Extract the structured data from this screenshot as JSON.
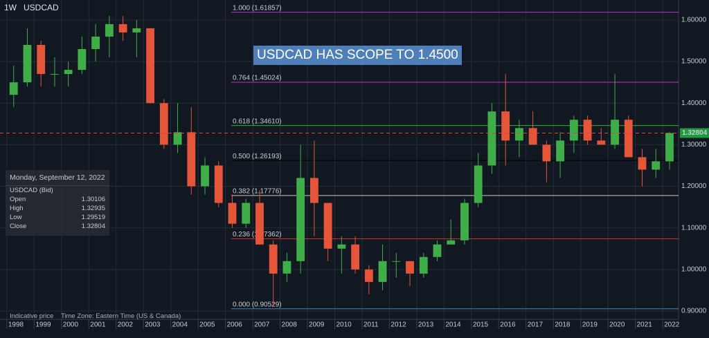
{
  "chart_data": {
    "type": "candlestick",
    "interval": "1W",
    "symbol": "USDCAD",
    "title": "USDCAD HAS SCOPE TO 1.4500",
    "panel": {
      "date": "Monday, September 12, 2022",
      "instrument": "USDCAD (Bid)",
      "rows": [
        {
          "label": "Open",
          "value": "1.30106"
        },
        {
          "label": "High",
          "value": "1.32935"
        },
        {
          "label": "Low",
          "value": "1.29519"
        },
        {
          "label": "Close",
          "value": "1.32804"
        }
      ]
    },
    "footer": {
      "note": "Indicative price",
      "timezone": "Time Zone: Eastern Time (US & Canada)"
    },
    "xlim": [
      1997.75,
      2022.58
    ],
    "xticks": [
      1998,
      1999,
      2000,
      2001,
      2002,
      2003,
      2004,
      2005,
      2006,
      2007,
      2008,
      2009,
      2010,
      2011,
      2012,
      2013,
      2014,
      2015,
      2016,
      2017,
      2018,
      2019,
      2020,
      2021,
      2022
    ],
    "ylim": [
      0.88,
      1.648
    ],
    "yticks": [
      {
        "value": 0.9,
        "label": "0.90000"
      },
      {
        "value": 1.0,
        "label": "1.00000"
      },
      {
        "value": 1.1,
        "label": "1.10000"
      },
      {
        "value": 1.2,
        "label": "1.20000"
      },
      {
        "value": 1.3,
        "label": "1.30000"
      },
      {
        "value": 1.4,
        "label": "1.40000"
      },
      {
        "value": 1.5,
        "label": "1.50000"
      },
      {
        "value": 1.6,
        "label": "1.60000"
      }
    ],
    "grid": true,
    "up_color": "#3fae49",
    "down_color": "#e4553a",
    "current_price": 1.32804,
    "current_color": "#e0433b",
    "levels": [
      {
        "label": "1.000 (1.61857)",
        "value": 1.61857,
        "color": "#c62bd0"
      },
      {
        "label": "0.764 (1.45024)",
        "value": 1.45024,
        "color": "#c62bd0"
      },
      {
        "label": "0.618 (1.34610)",
        "value": 1.3461,
        "color": "#2fb52f"
      },
      {
        "label": "0.500 (1.26193)",
        "value": 1.26193,
        "color": "#000000"
      },
      {
        "label": "0.382 (1.17776)",
        "value": 1.17776,
        "color": "#d9c3b0"
      },
      {
        "label": "0.236 (1.07362)",
        "value": 1.07362,
        "color": "#c0392b"
      },
      {
        "label": "0.000 (0.90529)",
        "value": 0.90529,
        "color": "#4a7fc1"
      }
    ],
    "x": [
      1998.25,
      1998.75,
      1999.25,
      1999.75,
      2000.25,
      2000.75,
      2001.25,
      2001.75,
      2002.25,
      2002.75,
      2003.25,
      2003.75,
      2004.25,
      2004.75,
      2005.25,
      2005.75,
      2006.25,
      2006.75,
      2007.25,
      2007.75,
      2008.25,
      2008.75,
      2009.25,
      2009.75,
      2010.25,
      2010.75,
      2011.25,
      2011.75,
      2012.25,
      2012.75,
      2013.25,
      2013.75,
      2014.25,
      2014.75,
      2015.25,
      2015.75,
      2016.25,
      2016.75,
      2017.25,
      2017.75,
      2018.25,
      2018.75,
      2019.25,
      2019.75,
      2020.25,
      2020.75,
      2021.25,
      2021.75,
      2022.25
    ],
    "open": [
      1.42,
      1.45,
      1.54,
      1.47,
      1.47,
      1.48,
      1.53,
      1.56,
      1.59,
      1.57,
      1.58,
      1.4,
      1.3,
      1.33,
      1.2,
      1.25,
      1.16,
      1.11,
      1.16,
      1.06,
      0.99,
      1.02,
      1.22,
      1.16,
      1.05,
      1.06,
      1.0,
      0.97,
      1.02,
      1.02,
      0.99,
      1.03,
      1.06,
      1.07,
      1.16,
      1.25,
      1.38,
      1.31,
      1.34,
      1.3,
      1.26,
      1.31,
      1.36,
      1.31,
      1.3,
      1.36,
      1.27,
      1.24,
      1.26
    ],
    "high": [
      1.49,
      1.58,
      1.55,
      1.51,
      1.5,
      1.56,
      1.59,
      1.61,
      1.61,
      1.6,
      1.58,
      1.41,
      1.4,
      1.39,
      1.27,
      1.26,
      1.18,
      1.17,
      1.19,
      1.07,
      1.04,
      1.3,
      1.31,
      1.16,
      1.08,
      1.08,
      1.01,
      1.06,
      1.04,
      1.02,
      1.04,
      1.07,
      1.12,
      1.17,
      1.28,
      1.4,
      1.47,
      1.36,
      1.38,
      1.31,
      1.33,
      1.37,
      1.37,
      1.34,
      1.47,
      1.37,
      1.29,
      1.29,
      1.33
    ],
    "low": [
      1.39,
      1.44,
      1.44,
      1.44,
      1.44,
      1.47,
      1.5,
      1.51,
      1.55,
      1.51,
      1.4,
      1.29,
      1.28,
      1.18,
      1.18,
      1.15,
      1.1,
      1.1,
      1.06,
      0.91,
      0.97,
      0.99,
      1.08,
      1.02,
      0.99,
      0.99,
      0.94,
      0.95,
      0.98,
      0.96,
      0.98,
      1.02,
      1.06,
      1.06,
      1.15,
      1.23,
      1.25,
      1.27,
      1.3,
      1.21,
      1.22,
      1.28,
      1.3,
      1.3,
      1.29,
      1.27,
      1.2,
      1.22,
      1.24
    ],
    "close": [
      1.45,
      1.54,
      1.47,
      1.47,
      1.48,
      1.53,
      1.56,
      1.59,
      1.57,
      1.58,
      1.4,
      1.3,
      1.33,
      1.2,
      1.25,
      1.16,
      1.11,
      1.16,
      1.06,
      0.99,
      1.02,
      1.22,
      1.16,
      1.05,
      1.06,
      1.0,
      0.97,
      1.02,
      1.02,
      0.99,
      1.03,
      1.06,
      1.07,
      1.16,
      1.25,
      1.38,
      1.31,
      1.34,
      1.3,
      1.26,
      1.31,
      1.36,
      1.31,
      1.3,
      1.36,
      1.27,
      1.24,
      1.26,
      1.32804
    ]
  }
}
